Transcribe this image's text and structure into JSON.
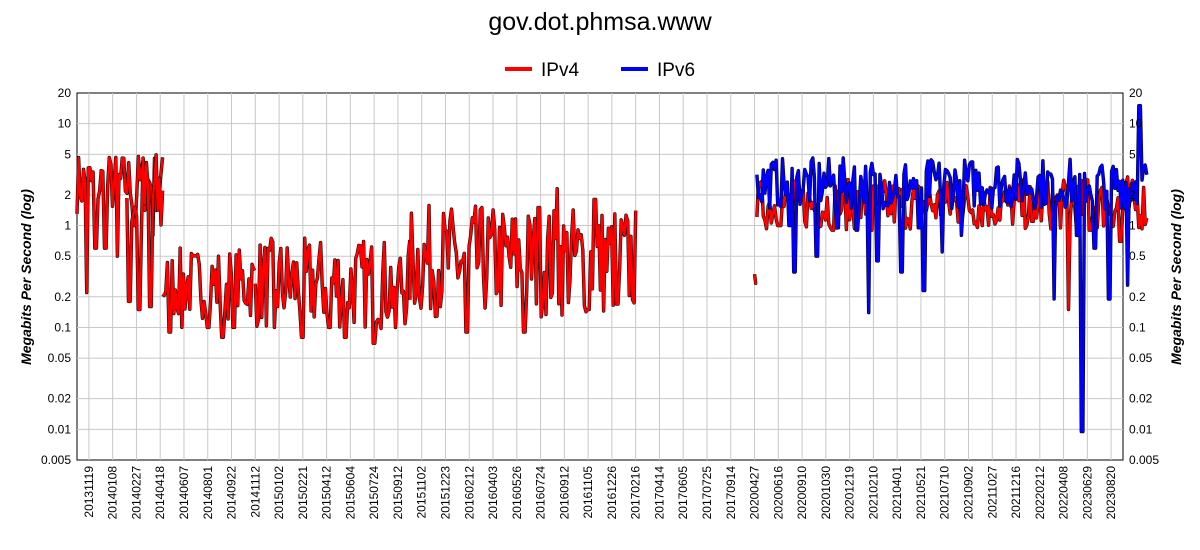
{
  "chart_data": {
    "type": "line",
    "title": "gov.dot.phmsa.www",
    "ylabel": "Megabits Per Second (log)",
    "y_scale": "log",
    "ylim": [
      0.005,
      20
    ],
    "yticks": [
      "20",
      "10",
      "5",
      "2",
      "1",
      "0.5",
      "0.2",
      "0.1",
      "0.05",
      "0.02",
      "0.01",
      "0.005"
    ],
    "ytick_values": [
      20,
      10,
      5,
      2,
      1,
      0.5,
      0.2,
      0.1,
      0.05,
      0.02,
      0.01,
      0.005
    ],
    "xticks": [
      "20131119",
      "20140108",
      "20140227",
      "20140418",
      "20140607",
      "20140801",
      "20140922",
      "20141112",
      "20150102",
      "20150221",
      "20150412",
      "20150604",
      "20150724",
      "20150912",
      "20151102",
      "20151223",
      "20160212",
      "20160403",
      "20160526",
      "20160724",
      "20160912",
      "20161105",
      "20161226",
      "20170216",
      "20170414",
      "20170605",
      "20170725",
      "20170914",
      "20200427",
      "20200616",
      "20200910",
      "20201030",
      "20201219",
      "20210210",
      "20210401",
      "20210521",
      "20210710",
      "20210902",
      "20211027",
      "20211216",
      "20220212",
      "20220408",
      "20230629",
      "20230820"
    ],
    "grid": true,
    "legend_position": "top-center",
    "series": [
      {
        "name": "IPv4",
        "color": "#ff0000",
        "segments": [
          {
            "x_start": 0,
            "x_end": 3.6,
            "level": 2.6,
            "spread": 0.3,
            "dips": [
              [
                0.4,
                0.22
              ],
              [
                0.8,
                0.6
              ],
              [
                1.2,
                0.6
              ],
              [
                1.7,
                0.5
              ],
              [
                2.4,
                1.0
              ],
              [
                3.2,
                0.8
              ]
            ]
          },
          {
            "x_start": 2.1,
            "x_end": 3.6,
            "level": 1.8,
            "spread": 0.5,
            "dips": [
              [
                2.2,
                0.18
              ],
              [
                2.6,
                0.15
              ],
              [
                3.1,
                0.16
              ]
            ]
          },
          {
            "x_start": 3.6,
            "x_end": 7.5,
            "level": 0.27,
            "spread": 0.35,
            "dips": [
              [
                3.9,
                0.09
              ],
              [
                4.4,
                0.1
              ],
              [
                5.5,
                0.1
              ],
              [
                6.1,
                0.08
              ],
              [
                6.6,
                0.1
              ]
            ]
          },
          {
            "x_start": 7.5,
            "x_end": 14,
            "level": 0.27,
            "spread": 0.45,
            "dips": [
              [
                8.3,
                0.1
              ],
              [
                9.5,
                0.08
              ],
              [
                10.6,
                0.1
              ],
              [
                11.3,
                0.08
              ],
              [
                12.5,
                0.07
              ],
              [
                13.4,
                0.1
              ]
            ]
          },
          {
            "x_start": 14,
            "x_end": 23.5,
            "level": 0.45,
            "spread": 0.55,
            "dips": [
              [
                16.4,
                0.09
              ],
              [
                18.8,
                0.09
              ],
              [
                21.5,
                0.15
              ],
              [
                22.7,
                0.17
              ]
            ],
            "peaks": [
              [
                19.4,
                1.5
              ],
              [
                20.2,
                2.3
              ],
              [
                21.8,
                1.8
              ]
            ]
          },
          {
            "x_start": 28.5,
            "x_end": 28.6,
            "level": 0.3,
            "spread": 0.05
          },
          {
            "x_start": 28.6,
            "x_end": 45,
            "level": 1.6,
            "spread": 0.25,
            "dips": [
              [
                29.5,
                1.0
              ],
              [
                31.8,
                0.9
              ],
              [
                33.4,
                0.9
              ],
              [
                40.2,
                1.1
              ],
              [
                41.7,
                0.15
              ],
              [
                42.6,
                0.9
              ],
              [
                43.9,
                0.7
              ]
            ],
            "peaks": [
              [
                42.5,
                2.8
              ],
              [
                44.2,
                3.0
              ]
            ]
          }
        ]
      },
      {
        "name": "IPv6",
        "color": "#0000ff",
        "segments": [
          {
            "x_start": 28.6,
            "x_end": 45,
            "level": 2.6,
            "spread": 0.25,
            "dips": [
              [
                29.2,
                1.5
              ],
              [
                30.0,
                1.0
              ],
              [
                30.2,
                0.35
              ],
              [
                31.1,
                0.5
              ],
              [
                32.0,
                0.95
              ],
              [
                32.8,
                0.9
              ],
              [
                33.3,
                0.14
              ],
              [
                33.7,
                0.45
              ],
              [
                34.7,
                0.35
              ],
              [
                35.4,
                0.95
              ],
              [
                35.6,
                0.23
              ],
              [
                36.4,
                0.55
              ],
              [
                37.2,
                0.8
              ],
              [
                41.1,
                0.19
              ],
              [
                42.1,
                0.8
              ],
              [
                42.3,
                0.0095
              ],
              [
                42.8,
                0.6
              ],
              [
                43.4,
                0.19
              ],
              [
                44.2,
                0.26
              ]
            ],
            "peaks": [
              [
                29.2,
                4.0
              ],
              [
                44.7,
                15.0
              ]
            ]
          }
        ]
      }
    ]
  },
  "legend": [
    {
      "label": "IPv4",
      "color": "#ff0000"
    },
    {
      "label": "IPv6",
      "color": "#0000ff"
    }
  ]
}
